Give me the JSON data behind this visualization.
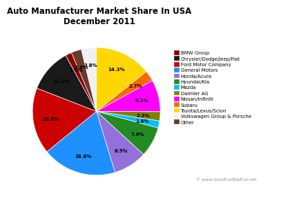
{
  "title": "Auto Manufacturer Market Share In USA\nDecember 2011",
  "labels": [
    "BMW Group",
    "Chrysler/Dodge/Jeep/Fiat",
    "Ford Motor Company",
    "General Motors",
    "Honda/Acura",
    "Hyundai/Kia",
    "Mazda",
    "Daimler AG",
    "Nissan/Infiniti",
    "Subaru",
    "Toyota/Lexus/Scion",
    "Volkswagen Group & Porsche",
    "Other"
  ],
  "values": [
    1.6,
    11.1,
    16.8,
    18.8,
    8.5,
    7.6,
    1.8,
    2.3,
    8.1,
    2.7,
    14.3,
    3.8,
    2.6
  ],
  "colors": [
    "#8B0000",
    "#1a1a1a",
    "#CC0000",
    "#1E90FF",
    "#9370DB",
    "#228B22",
    "#00BFFF",
    "#808000",
    "#FF00FF",
    "#FF6600",
    "#FFD700",
    "#F0F0F0",
    "#6B3A2A"
  ],
  "watermark": "© www.GoodCarBadCar.net",
  "background_color": "#ffffff"
}
